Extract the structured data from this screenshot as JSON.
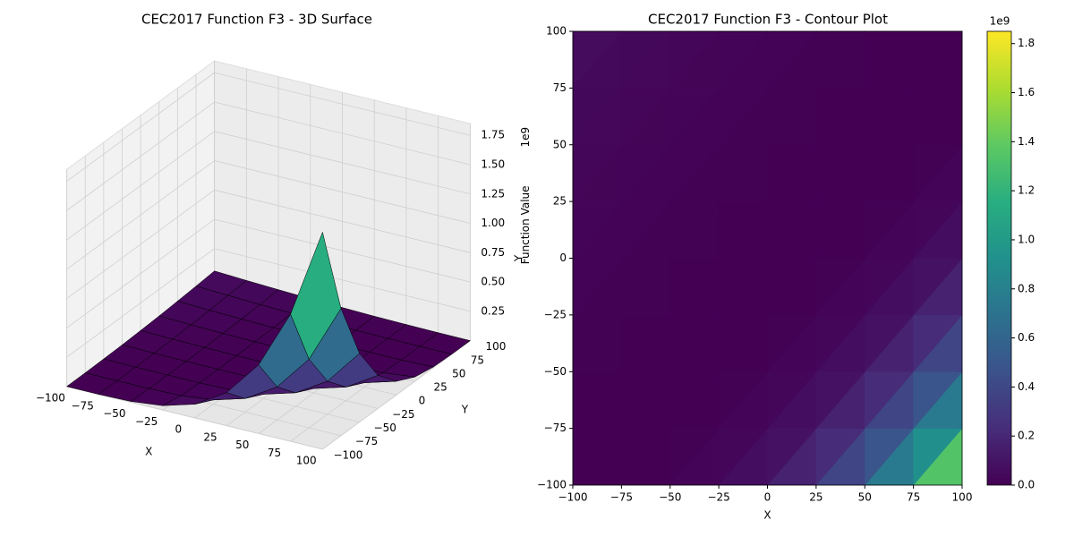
{
  "chart_data": [
    {
      "type": "surface3d",
      "title": "CEC2017 Function F3 - 3D Surface",
      "xlabel": "X",
      "ylabel": "Y",
      "zlabel": "Function Value",
      "z_offset_label": "1e9",
      "colormap": "viridis",
      "x": [
        -100,
        -75,
        -50,
        -25,
        0,
        25,
        50,
        75,
        100
      ],
      "y": [
        -100,
        -75,
        -50,
        -25,
        0,
        25,
        50,
        75,
        100
      ],
      "z": [
        [
          0,
          0,
          0.007,
          0.037,
          0.116,
          0.282,
          0.585,
          1.084,
          1.85
        ],
        [
          0.001,
          0,
          0,
          0.007,
          0.037,
          0.116,
          0.282,
          0.585,
          1.084
        ],
        [
          0.004,
          0.001,
          0,
          0,
          0.007,
          0.037,
          0.116,
          0.282,
          0.585
        ],
        [
          0.008,
          0.004,
          0.001,
          0,
          0,
          0.007,
          0.037,
          0.116,
          0.282
        ],
        [
          0.015,
          0.008,
          0.004,
          0.001,
          0,
          0,
          0.007,
          0.037,
          0.116
        ],
        [
          0.023,
          0.015,
          0.008,
          0.004,
          0.001,
          0,
          0,
          0.007,
          0.037
        ],
        [
          0.034,
          0.023,
          0.015,
          0.008,
          0.004,
          0.001,
          0,
          0,
          0.007
        ],
        [
          0.046,
          0.034,
          0.023,
          0.015,
          0.008,
          0.004,
          0.001,
          0,
          0
        ],
        [
          0.06,
          0.046,
          0.034,
          0.023,
          0.015,
          0.008,
          0.004,
          0.001,
          0
        ]
      ],
      "xlim": [
        -100,
        100
      ],
      "ylim": [
        -100,
        100
      ],
      "zlim": [
        0,
        1.85
      ],
      "xticks": [
        {
          "value": -100,
          "label": "−100"
        },
        {
          "value": -75,
          "label": "−75"
        },
        {
          "value": -50,
          "label": "−50"
        },
        {
          "value": -25,
          "label": "−25"
        },
        0,
        25,
        50,
        75,
        100
      ],
      "yticks": [
        {
          "value": -100,
          "label": "−100"
        },
        {
          "value": -75,
          "label": "−75"
        },
        {
          "value": -50,
          "label": "−50"
        },
        {
          "value": -25,
          "label": "−25"
        },
        0,
        25,
        50,
        75,
        100
      ],
      "zticks": [
        0.25,
        {
          "value": 0.5,
          "label": "0.50"
        },
        0.75,
        {
          "value": 1,
          "label": "1.00"
        },
        1.25,
        {
          "value": 1.5,
          "label": "1.50"
        },
        1.75
      ]
    },
    {
      "type": "contour",
      "title": "CEC2017 Function F3 - Contour Plot",
      "xlabel": "X",
      "ylabel": "Y",
      "colormap": "viridis",
      "x": [
        -100,
        -75,
        -50,
        -25,
        0,
        25,
        50,
        75,
        100
      ],
      "y": [
        -100,
        -75,
        -50,
        -25,
        0,
        25,
        50,
        75,
        100
      ],
      "z": [
        [
          0,
          0,
          0.007,
          0.037,
          0.116,
          0.282,
          0.585,
          1.084,
          1.85
        ],
        [
          0.001,
          0,
          0,
          0.007,
          0.037,
          0.116,
          0.282,
          0.585,
          1.084
        ],
        [
          0.004,
          0.001,
          0,
          0,
          0.007,
          0.037,
          0.116,
          0.282,
          0.585
        ],
        [
          0.008,
          0.004,
          0.001,
          0,
          0,
          0.007,
          0.037,
          0.116,
          0.282
        ],
        [
          0.015,
          0.008,
          0.004,
          0.001,
          0,
          0,
          0.007,
          0.037,
          0.116
        ],
        [
          0.023,
          0.015,
          0.008,
          0.004,
          0.001,
          0,
          0,
          0.007,
          0.037
        ],
        [
          0.034,
          0.023,
          0.015,
          0.008,
          0.004,
          0.001,
          0,
          0,
          0.007
        ],
        [
          0.046,
          0.034,
          0.023,
          0.015,
          0.008,
          0.004,
          0.001,
          0,
          0
        ],
        [
          0.06,
          0.046,
          0.034,
          0.023,
          0.015,
          0.008,
          0.004,
          0.001,
          0
        ]
      ],
      "xlim": [
        -100,
        100
      ],
      "ylim": [
        -100,
        100
      ],
      "xticks": [
        {
          "value": -100,
          "label": "−100"
        },
        {
          "value": -75,
          "label": "−75"
        },
        {
          "value": -50,
          "label": "−50"
        },
        {
          "value": -25,
          "label": "−25"
        },
        0,
        25,
        50,
        75,
        100
      ],
      "yticks": [
        {
          "value": -100,
          "label": "−100"
        },
        {
          "value": -75,
          "label": "−75"
        },
        {
          "value": -50,
          "label": "−50"
        },
        {
          "value": -25,
          "label": "−25"
        },
        0,
        25,
        50,
        75,
        100
      ],
      "colorbar_lim": [
        0,
        1.85
      ],
      "colorbar_offset_label": "1e9",
      "colorbar_ticks": [
        {
          "value": 0,
          "label": "0.0"
        },
        0.2,
        0.4,
        0.6,
        0.8,
        {
          "value": 1,
          "label": "1.0"
        },
        1.2,
        1.4,
        1.6,
        1.8
      ]
    }
  ]
}
